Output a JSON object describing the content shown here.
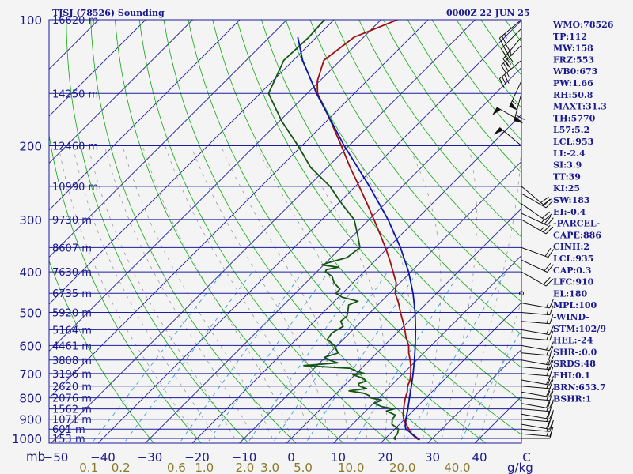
{
  "header": {
    "station_title": "TJSJ (78526) Sounding",
    "valid_time": "0000Z 22 JUN 25"
  },
  "axes": {
    "pressure_unit_label": "mb",
    "mixing_unit_label": "g/kg",
    "pressure_ticks": [
      "100",
      "200",
      "300",
      "400",
      "500",
      "600",
      "700",
      "800",
      "900",
      "1000"
    ],
    "temp_ticks": [
      "−50",
      "−40",
      "−30",
      "−20",
      "−10",
      "0",
      "10",
      "20",
      "30",
      "40",
      "C"
    ],
    "mixing_ticks": [
      "0.1",
      "0.2",
      "0.6",
      "1.0",
      "2.0",
      "3.0",
      "5.0",
      "10.0",
      "20.0",
      "40.0"
    ]
  },
  "chart_data": {
    "type": "skew-t",
    "x_axis": {
      "quantity": "temperature",
      "unit": "C",
      "range": [
        -50,
        50
      ],
      "skew": "45-degree"
    },
    "y_axis": {
      "quantity": "pressure",
      "unit": "mb",
      "scale": "log",
      "range": [
        1000,
        100
      ]
    },
    "height_labels": [
      {
        "p": 100,
        "label": "16620 m"
      },
      {
        "p": 150,
        "label": "14250 m"
      },
      {
        "p": 200,
        "label": "12460 m"
      },
      {
        "p": 250,
        "label": "10990 m"
      },
      {
        "p": 300,
        "label": "9730 m"
      },
      {
        "p": 350,
        "label": "8607 m"
      },
      {
        "p": 400,
        "label": "7630 m"
      },
      {
        "p": 450,
        "label": "6735 m"
      },
      {
        "p": 500,
        "label": "5920 m"
      },
      {
        "p": 550,
        "label": "5164 m"
      },
      {
        "p": 600,
        "label": "4461 m"
      },
      {
        "p": 650,
        "label": "3808 m"
      },
      {
        "p": 700,
        "label": "3196 m"
      },
      {
        "p": 750,
        "label": "2620 m"
      },
      {
        "p": 800,
        "label": "2076 m"
      },
      {
        "p": 850,
        "label": "1562 m"
      },
      {
        "p": 900,
        "label": "1071 m"
      },
      {
        "p": 950,
        "label": "601 m"
      },
      {
        "p": 1000,
        "label": "153 m"
      }
    ],
    "series": [
      {
        "key": "temperature",
        "color": "#a01010",
        "points": [
          [
            1008,
            27.6
          ],
          [
            1000,
            26.6
          ],
          [
            975,
            24.6
          ],
          [
            950,
            23.0
          ],
          [
            925,
            21.4
          ],
          [
            900,
            19.8
          ],
          [
            875,
            18.6
          ],
          [
            850,
            17.6
          ],
          [
            825,
            16.6
          ],
          [
            800,
            15.6
          ],
          [
            775,
            14.8
          ],
          [
            750,
            13.6
          ],
          [
            725,
            12.8
          ],
          [
            700,
            11.6
          ],
          [
            675,
            10.2
          ],
          [
            650,
            8.6
          ],
          [
            625,
            6.8
          ],
          [
            600,
            5.2
          ],
          [
            575,
            3.0
          ],
          [
            550,
            1.0
          ],
          [
            525,
            -1.2
          ],
          [
            500,
            -3.6
          ],
          [
            475,
            -6.0
          ],
          [
            450,
            -8.8
          ],
          [
            425,
            -10.8
          ],
          [
            400,
            -13.8
          ],
          [
            375,
            -17.0
          ],
          [
            350,
            -20.6
          ],
          [
            325,
            -24.6
          ],
          [
            300,
            -29.0
          ],
          [
            275,
            -33.8
          ],
          [
            250,
            -39.2
          ],
          [
            225,
            -45.2
          ],
          [
            200,
            -51.6
          ],
          [
            175,
            -59.0
          ],
          [
            150,
            -67.8
          ],
          [
            140,
            -70.5
          ],
          [
            125,
            -73.5
          ],
          [
            110,
            -72.0
          ],
          [
            100,
            -66.5
          ]
        ]
      },
      {
        "key": "dewpoint",
        "color": "#155515",
        "points": [
          [
            1008,
            22.6
          ],
          [
            1000,
            21.8
          ],
          [
            975,
            21.6
          ],
          [
            950,
            20.8
          ],
          [
            925,
            18.4
          ],
          [
            900,
            17.4
          ],
          [
            880,
            17.2
          ],
          [
            860,
            14.4
          ],
          [
            850,
            15.6
          ],
          [
            840,
            12.6
          ],
          [
            825,
            10.2
          ],
          [
            810,
            11.0
          ],
          [
            800,
            8.2
          ],
          [
            790,
            7.4
          ],
          [
            780,
            5.8
          ],
          [
            770,
            2.2
          ],
          [
            760,
            5.4
          ],
          [
            750,
            3.4
          ],
          [
            740,
            2.6
          ],
          [
            730,
            3.6
          ],
          [
            725,
            3.2
          ],
          [
            715,
            1.8
          ],
          [
            705,
            -0.4
          ],
          [
            700,
            1.8
          ],
          [
            690,
            -0.6
          ],
          [
            680,
            -2.4
          ],
          [
            670,
            -12.8
          ],
          [
            660,
            -6.2
          ],
          [
            650,
            -8.6
          ],
          [
            640,
            -10.2
          ],
          [
            625,
            -8.2
          ],
          [
            600,
            -10.6
          ],
          [
            580,
            -13.4
          ],
          [
            560,
            -13.8
          ],
          [
            540,
            -12.8
          ],
          [
            525,
            -14.4
          ],
          [
            510,
            -14.2
          ],
          [
            500,
            -14.8
          ],
          [
            480,
            -16.2
          ],
          [
            470,
            -15.0
          ],
          [
            460,
            -19.2
          ],
          [
            450,
            -21.4
          ],
          [
            440,
            -21.4
          ],
          [
            425,
            -24.0
          ],
          [
            410,
            -25.8
          ],
          [
            400,
            -28.2
          ],
          [
            395,
            -28.4
          ],
          [
            390,
            -26.4
          ],
          [
            385,
            -30.4
          ],
          [
            380,
            -29.4
          ],
          [
            370,
            -26.6
          ],
          [
            350,
            -26.0
          ],
          [
            325,
            -29.4
          ],
          [
            300,
            -33.2
          ],
          [
            275,
            -39.2
          ],
          [
            250,
            -45.4
          ],
          [
            225,
            -53.6
          ],
          [
            200,
            -60.8
          ],
          [
            175,
            -69.4
          ],
          [
            150,
            -78.2
          ],
          [
            125,
            -82.0
          ],
          [
            110,
            -81.6
          ],
          [
            100,
            -82.0
          ]
        ]
      },
      {
        "key": "parcel",
        "color": "#0e18a8",
        "points": [
          [
            1008,
            27.6
          ],
          [
            950,
            22.4
          ],
          [
            935,
            21.6
          ],
          [
            900,
            20.3
          ],
          [
            850,
            18.5
          ],
          [
            800,
            16.5
          ],
          [
            750,
            14.4
          ],
          [
            700,
            12.1
          ],
          [
            650,
            9.5
          ],
          [
            600,
            6.6
          ],
          [
            550,
            3.3
          ],
          [
            500,
            -0.5
          ],
          [
            450,
            -5.0
          ],
          [
            400,
            -10.5
          ],
          [
            350,
            -17.4
          ],
          [
            300,
            -26.0
          ],
          [
            250,
            -37.0
          ],
          [
            200,
            -51.0
          ],
          [
            150,
            -68.0
          ],
          [
            125,
            -78.0
          ],
          [
            110,
            -84.0
          ]
        ]
      }
    ],
    "wind_barbs": [
      {
        "p": 1000,
        "dir": 90,
        "spd": 10
      },
      {
        "p": 975,
        "dir": 95,
        "spd": 15
      },
      {
        "p": 950,
        "dir": 95,
        "spd": 20
      },
      {
        "p": 925,
        "dir": 100,
        "spd": 20
      },
      {
        "p": 900,
        "dir": 95,
        "spd": 20
      },
      {
        "p": 875,
        "dir": 100,
        "spd": 20
      },
      {
        "p": 850,
        "dir": 95,
        "spd": 20
      },
      {
        "p": 825,
        "dir": 100,
        "spd": 20
      },
      {
        "p": 800,
        "dir": 95,
        "spd": 20
      },
      {
        "p": 775,
        "dir": 100,
        "spd": 20
      },
      {
        "p": 750,
        "dir": 95,
        "spd": 20
      },
      {
        "p": 725,
        "dir": 100,
        "spd": 20
      },
      {
        "p": 700,
        "dir": 95,
        "spd": 20
      },
      {
        "p": 675,
        "dir": 95,
        "spd": 20
      },
      {
        "p": 650,
        "dir": 100,
        "spd": 20
      },
      {
        "p": 625,
        "dir": 95,
        "spd": 15
      },
      {
        "p": 600,
        "dir": 100,
        "spd": 15
      },
      {
        "p": 575,
        "dir": 95,
        "spd": 15
      },
      {
        "p": 550,
        "dir": 100,
        "spd": 15
      },
      {
        "p": 525,
        "dir": 95,
        "spd": 15
      },
      {
        "p": 500,
        "dir": 95,
        "spd": 15
      },
      {
        "p": 475,
        "dir": 100,
        "spd": 15
      },
      {
        "p": 450,
        "dir": 90,
        "spd": 0
      },
      {
        "p": 400,
        "dir": 120,
        "spd": 20
      },
      {
        "p": 375,
        "dir": 115,
        "spd": 20
      },
      {
        "p": 350,
        "dir": 110,
        "spd": 20
      },
      {
        "p": 300,
        "dir": 120,
        "spd": 25
      },
      {
        "p": 290,
        "dir": 115,
        "spd": 25
      },
      {
        "p": 275,
        "dir": 125,
        "spd": 20
      },
      {
        "p": 260,
        "dir": 120,
        "spd": 20
      },
      {
        "p": 250,
        "dir": 130,
        "spd": 20
      },
      {
        "p": 200,
        "dir": 310,
        "spd": 55
      },
      {
        "p": 175,
        "dir": 300,
        "spd": 50
      },
      {
        "p": 150,
        "dir": 195,
        "spd": 60
      },
      {
        "p": 140,
        "dir": 205,
        "spd": 55
      },
      {
        "p": 125,
        "dir": 230,
        "spd": 35
      },
      {
        "p": 115,
        "dir": 225,
        "spd": 30
      },
      {
        "p": 110,
        "dir": 220,
        "spd": 35
      },
      {
        "p": 105,
        "dir": 225,
        "spd": 30
      },
      {
        "p": 100,
        "dir": 230,
        "spd": 25
      }
    ]
  },
  "indices": [
    "WMO:78526",
    "TP:112",
    "MW:158",
    "FRZ:553",
    "WB0:673",
    "PW:1.66",
    "RH:50.8",
    "MAXT:31.3",
    "TH:5770",
    "L57:5.2",
    "LCL:953",
    "LI:-2.4",
    "SI:3.9",
    "TT:39",
    "KI:25",
    "SW:183",
    "EI:-0.4",
    "-PARCEL-",
    "CAPE:886",
    "CINH:2",
    "LCL:935",
    "CAP:0.3",
    "LFC:910",
    "EL:180",
    "MPL:100",
    "-WIND-",
    "STM:102/9",
    "HEL:-24",
    "SHR-:0.0",
    "SRDS:48",
    "EHI:0.1",
    "BRN:653.7",
    "BSHR:1"
  ],
  "colors": {
    "isobar": "#1c1c9e",
    "isotherm": "#1c1c9e",
    "dry_adiabat": "#0fa80f",
    "moist_adiabat": "#909090",
    "mixing_ratio": "#3aa0d8",
    "background": "#f4f4f4"
  }
}
